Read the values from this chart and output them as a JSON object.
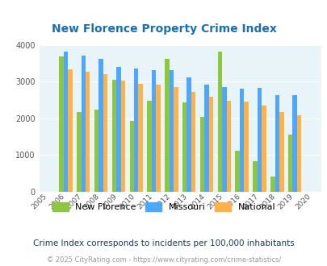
{
  "title": "New Florence Property Crime Index",
  "years": [
    2005,
    2006,
    2007,
    2008,
    2009,
    2010,
    2011,
    2012,
    2013,
    2014,
    2015,
    2016,
    2017,
    2018,
    2019,
    2020
  ],
  "new_florence": [
    null,
    3700,
    2175,
    2250,
    3050,
    1920,
    2480,
    3620,
    2440,
    2040,
    3820,
    1110,
    830,
    420,
    1560,
    null
  ],
  "missouri": [
    null,
    3820,
    3720,
    3630,
    3400,
    3360,
    3320,
    3320,
    3120,
    2920,
    2860,
    2820,
    2830,
    2640,
    2640,
    null
  ],
  "national": [
    null,
    3350,
    3270,
    3200,
    3030,
    2950,
    2930,
    2850,
    2730,
    2590,
    2490,
    2450,
    2360,
    2180,
    2090,
    null
  ],
  "new_florence_color": "#8dc63f",
  "missouri_color": "#4da6ff",
  "national_color": "#ffb347",
  "bg_color": "#e8f4f8",
  "ylim": [
    0,
    4000
  ],
  "yticks": [
    0,
    1000,
    2000,
    3000,
    4000
  ],
  "subtitle": "Crime Index corresponds to incidents per 100,000 inhabitants",
  "footer": "© 2025 CityRating.com - https://www.cityrating.com/crime-statistics/",
  "title_color": "#1a6faf",
  "subtitle_color": "#1a3a5c",
  "footer_color": "#999999",
  "bar_width": 0.25
}
